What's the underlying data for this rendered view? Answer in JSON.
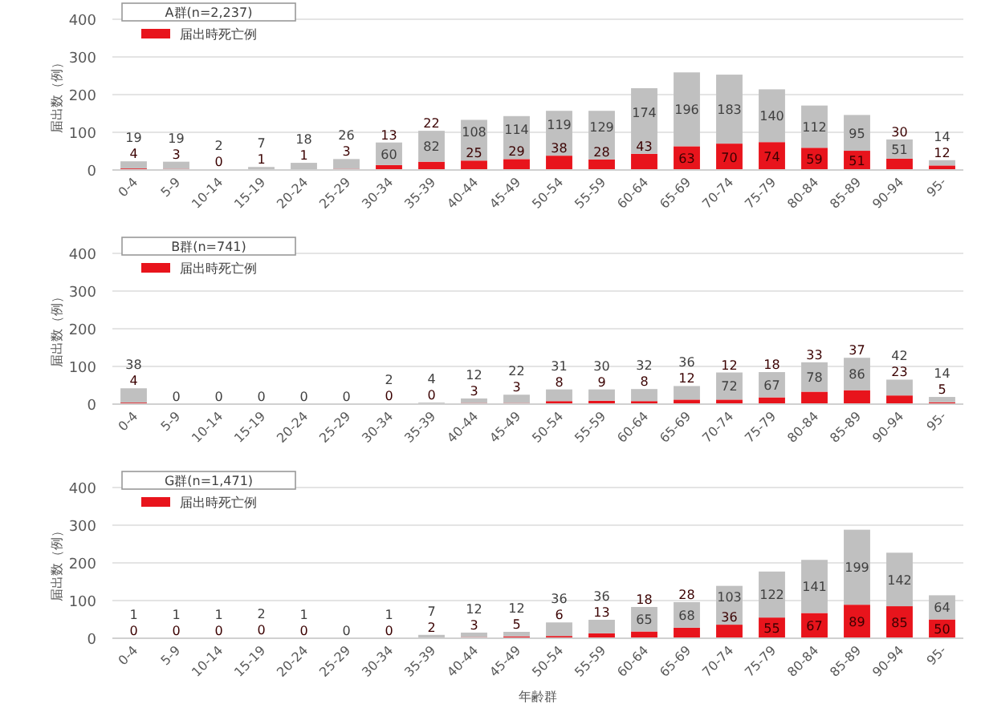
{
  "chart_data": [
    {
      "type": "bar",
      "stacked": true,
      "title": "A群(n=2,237)",
      "ylabel": "届出数（例）",
      "categories": [
        "0-4",
        "5-9",
        "10-14",
        "15-19",
        "20-24",
        "25-29",
        "30-34",
        "35-39",
        "40-44",
        "45-49",
        "50-54",
        "55-59",
        "60-64",
        "65-69",
        "70-74",
        "75-79",
        "80-84",
        "85-89",
        "90-94",
        "95-"
      ],
      "ylim": [
        0,
        400
      ],
      "yticks": [
        0,
        100,
        200,
        300,
        400
      ],
      "grid": "y",
      "legend": "top left",
      "series": [
        {
          "name": "届出時死亡例",
          "color": "#e8141c",
          "values": [
            4,
            3,
            0,
            1,
            1,
            3,
            13,
            22,
            25,
            29,
            38,
            28,
            43,
            63,
            70,
            74,
            59,
            51,
            30,
            12
          ],
          "value_labels": [
            "4",
            "3",
            "0",
            "1",
            "1",
            "3",
            "13",
            "22",
            "25",
            "29",
            "38",
            "28",
            "43",
            "63",
            "70",
            "74",
            "59",
            "51",
            "30",
            "12"
          ]
        },
        {
          "color": "#c0c0c0",
          "values": [
            19,
            19,
            2,
            7,
            18,
            26,
            60,
            82,
            108,
            114,
            119,
            129,
            174,
            196,
            183,
            140,
            112,
            95,
            51,
            14
          ],
          "value_labels": [
            "19",
            "19",
            "2",
            "7",
            "18",
            "26",
            "60",
            "82",
            "108",
            "114",
            "119",
            "129",
            "174",
            "196",
            "183",
            "140",
            "112",
            "95",
            "51",
            "14"
          ]
        }
      ]
    },
    {
      "type": "bar",
      "stacked": true,
      "title": "B群(n=741)",
      "ylabel": "届出数（例）",
      "categories": [
        "0-4",
        "5-9",
        "10-14",
        "15-19",
        "20-24",
        "25-29",
        "30-34",
        "35-39",
        "40-44",
        "45-49",
        "50-54",
        "55-59",
        "60-64",
        "65-69",
        "70-74",
        "75-79",
        "80-84",
        "85-89",
        "90-94",
        "95-"
      ],
      "ylim": [
        0,
        400
      ],
      "yticks": [
        0,
        100,
        200,
        300,
        400
      ],
      "grid": "y",
      "legend": "top left",
      "series": [
        {
          "name": "届出時死亡例",
          "color": "#e8141c",
          "values": [
            4,
            0,
            0,
            0,
            0,
            0,
            0,
            0,
            3,
            3,
            8,
            9,
            8,
            12,
            12,
            18,
            33,
            37,
            23,
            5
          ],
          "value_labels": [
            "4",
            null,
            null,
            null,
            null,
            null,
            "0",
            "0",
            "3",
            "3",
            "8",
            "9",
            "8",
            "12",
            "12",
            "18",
            "33",
            "37",
            "23",
            "5"
          ]
        },
        {
          "color": "#c0c0c0",
          "values": [
            38,
            0,
            0,
            0,
            0,
            0,
            2,
            4,
            12,
            22,
            31,
            30,
            32,
            36,
            72,
            67,
            78,
            86,
            42,
            14
          ],
          "value_labels": [
            "38",
            "0",
            "0",
            "0",
            "0",
            "0",
            "2",
            "4",
            "12",
            "22",
            "31",
            "30",
            "32",
            "36",
            "72",
            "67",
            "78",
            "86",
            "42",
            "14"
          ]
        }
      ]
    },
    {
      "type": "bar",
      "stacked": true,
      "title": "G群(n=1,471)",
      "ylabel": "届出数（例）",
      "xlabel": "年齢群",
      "categories": [
        "0-4",
        "5-9",
        "10-14",
        "15-19",
        "20-24",
        "25-29",
        "30-34",
        "35-39",
        "40-44",
        "45-49",
        "50-54",
        "55-59",
        "60-64",
        "65-69",
        "70-74",
        "75-79",
        "80-84",
        "85-89",
        "90-94",
        "95-"
      ],
      "ylim": [
        0,
        400
      ],
      "yticks": [
        0,
        100,
        200,
        300,
        400
      ],
      "grid": "y",
      "legend": "top left",
      "series": [
        {
          "name": "届出時死亡例",
          "color": "#e8141c",
          "values": [
            0,
            0,
            0,
            0,
            0,
            0,
            0,
            2,
            3,
            5,
            6,
            13,
            18,
            28,
            36,
            55,
            67,
            89,
            85,
            50
          ],
          "value_labels": [
            "0",
            "0",
            "0",
            "0",
            "0",
            null,
            "0",
            "2",
            "3",
            "5",
            "6",
            "13",
            "18",
            "28",
            "36",
            "55",
            "67",
            "89",
            "85",
            "50"
          ]
        },
        {
          "color": "#c0c0c0",
          "values": [
            1,
            1,
            1,
            2,
            1,
            0,
            1,
            7,
            12,
            12,
            36,
            36,
            65,
            68,
            103,
            122,
            141,
            199,
            142,
            64
          ],
          "value_labels": [
            "1",
            "1",
            "1",
            "2",
            "1",
            "0",
            "1",
            "7",
            "12",
            "12",
            "36",
            "36",
            "65",
            "68",
            "103",
            "122",
            "141",
            "199",
            "142",
            "64"
          ]
        }
      ]
    }
  ]
}
